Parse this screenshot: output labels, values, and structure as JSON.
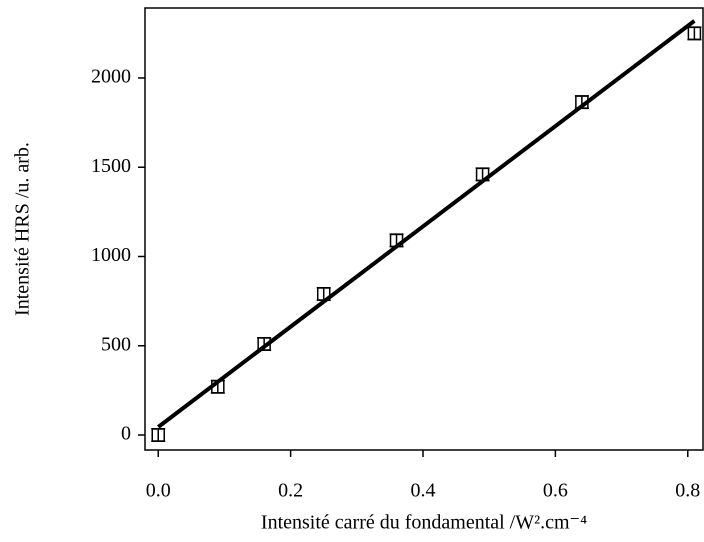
{
  "chart_data": {
    "type": "scatter",
    "x_label": "Intensité carré du fondamental /W².cm⁻⁴",
    "y_label": "Intensité HRS /u. arb.",
    "x": [
      0,
      0.09,
      0.16,
      0.25,
      0.36,
      0.49,
      0.64,
      0.81
    ],
    "values": [
      0,
      270,
      510,
      790,
      1090,
      1460,
      1865,
      2250
    ],
    "errors": [
      35,
      35,
      35,
      35,
      35,
      35,
      35,
      35
    ],
    "color": "#000000",
    "fit": {
      "x": [
        0,
        0.81
      ],
      "values": [
        45,
        2320
      ],
      "color": "#000000"
    },
    "xlim": [
      -0.02,
      0.823
    ],
    "ylim": [
      -84,
      2392
    ],
    "xticks": [
      {
        "value": 0,
        "label": "0.0"
      },
      0.2,
      0.4,
      0.6,
      0.8
    ],
    "yticks": [
      0,
      500,
      1000,
      1500,
      2000
    ]
  }
}
